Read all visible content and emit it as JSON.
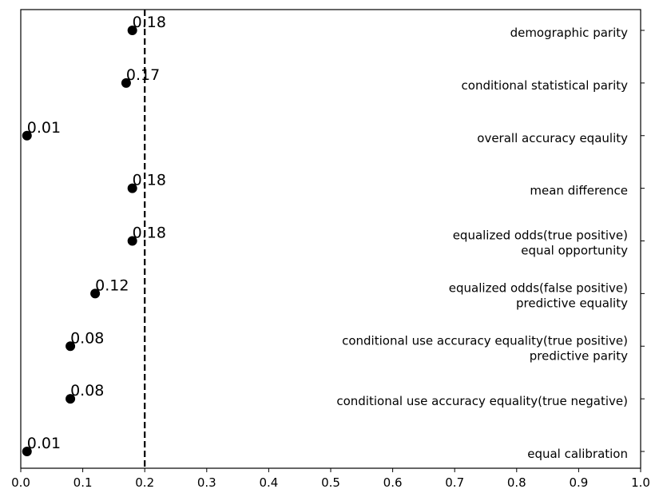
{
  "chart_data": {
    "type": "scatter",
    "title": "",
    "xlabel": "",
    "ylabel": "",
    "xlim": [
      0.0,
      1.0
    ],
    "x_ticks": [
      "0.0",
      "0.1",
      "0.2",
      "0.3",
      "0.4",
      "0.5",
      "0.6",
      "0.7",
      "0.8",
      "0.9",
      "1.0"
    ],
    "grid": false,
    "reference_line": {
      "x": 0.2,
      "style": "dashed"
    },
    "marker_color": "#000000",
    "points": [
      {
        "label": [
          "demographic parity"
        ],
        "value": 0.18,
        "value_label": "0.18"
      },
      {
        "label": [
          "conditional statistical parity"
        ],
        "value": 0.17,
        "value_label": "0.17"
      },
      {
        "label": [
          "overall accuracy eqaulity"
        ],
        "value": 0.01,
        "value_label": "0.01"
      },
      {
        "label": [
          "mean difference"
        ],
        "value": 0.18,
        "value_label": "0.18"
      },
      {
        "label": [
          "equalized odds(true positive)",
          "equal opportunity"
        ],
        "value": 0.18,
        "value_label": "0.18"
      },
      {
        "label": [
          "equalized odds(false positive)",
          "predictive equality"
        ],
        "value": 0.12,
        "value_label": "0.12"
      },
      {
        "label": [
          "conditional use accuracy equality(true positive)",
          "predictive parity"
        ],
        "value": 0.08,
        "value_label": "0.08"
      },
      {
        "label": [
          "conditional use accuracy equality(true negative)"
        ],
        "value": 0.08,
        "value_label": "0.08"
      },
      {
        "label": [
          "equal calibration"
        ],
        "value": 0.01,
        "value_label": "0.01"
      }
    ]
  }
}
